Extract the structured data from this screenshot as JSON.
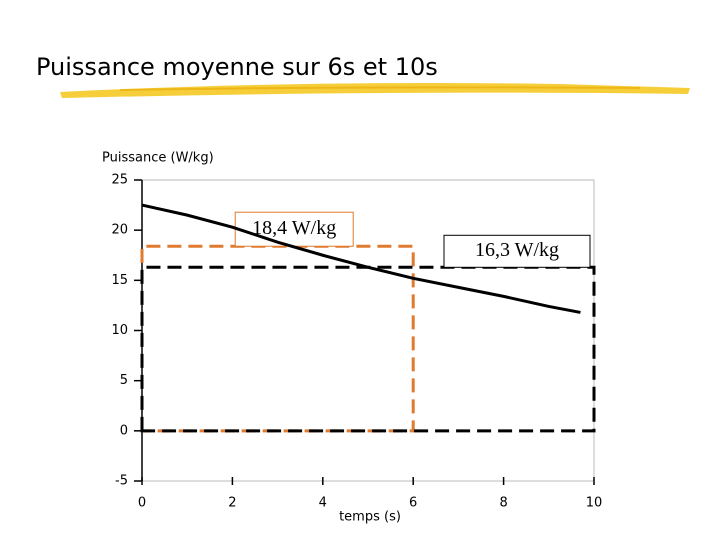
{
  "chart_data": {
    "type": "line",
    "title": "Puissance moyenne sur 6s et 10s",
    "ylabel": "Puissance (W/kg)",
    "xlabel": "temps (s)",
    "x": [
      0,
      1,
      2,
      3,
      4,
      5,
      6,
      7,
      8,
      9,
      9.7
    ],
    "series": [
      {
        "color": "#000000",
        "values": [
          22.5,
          21.5,
          20.3,
          18.8,
          17.5,
          16.3,
          15.2,
          14.3,
          13.4,
          12.4,
          11.8
        ]
      }
    ],
    "averages": [
      {
        "x_end": 6,
        "value": 18.4,
        "label": "18,4 W/kg",
        "color": "#e07a2e"
      },
      {
        "x_end": 10,
        "value": 16.3,
        "label": "16,3 W/kg",
        "color": "#000000"
      }
    ],
    "xlim": [
      0,
      10
    ],
    "xticks": [
      0,
      2,
      4,
      6,
      8,
      10
    ],
    "ylim": [
      -5,
      25
    ],
    "yticks": [
      -5,
      0,
      5,
      10,
      15,
      20,
      25
    ],
    "grid": false
  }
}
